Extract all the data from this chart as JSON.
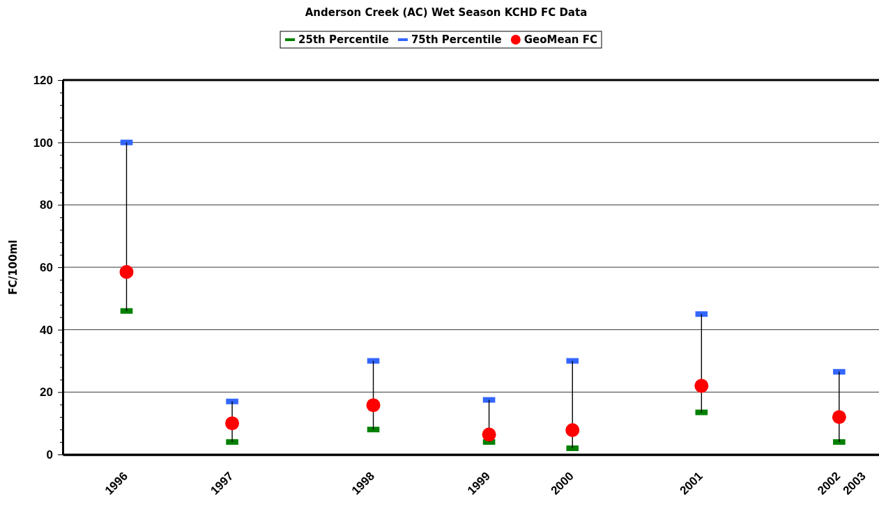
{
  "chart_data": {
    "type": "scatter",
    "title": "Anderson Creek (AC) Wet Season KCHD FC Data",
    "ylabel": "FC/100ml",
    "x": [
      "1996-01-01",
      "1997-01-01",
      "1998-05-05",
      "1999-06-10",
      "2000-03-25",
      "2001-06-15",
      "2002-10-05"
    ],
    "xlim": [
      "1995-05-25",
      "2003-02-20"
    ],
    "xticks": [
      {
        "value": "1996-01-01",
        "label": "1996"
      },
      {
        "value": "1997-01-01",
        "label": "1997"
      },
      {
        "value": "1998-05-05",
        "label": "1998"
      },
      {
        "value": "1999-06-10",
        "label": "1999"
      },
      {
        "value": "2000-03-25",
        "label": "2000"
      },
      {
        "value": "2001-06-15",
        "label": "2001"
      },
      {
        "value": "2002-10-05",
        "label": "2002"
      },
      {
        "value": "2003-01-01",
        "label": "2003"
      }
    ],
    "ylim": [
      0,
      120
    ],
    "yticks": [
      0,
      {
        "value": 4,
        "label": null
      },
      {
        "value": 8,
        "label": null
      },
      {
        "value": 12,
        "label": null
      },
      {
        "value": 16,
        "label": null
      },
      20,
      {
        "value": 24,
        "label": null
      },
      {
        "value": 28,
        "label": null
      },
      {
        "value": 32,
        "label": null
      },
      {
        "value": 36,
        "label": null
      },
      40,
      {
        "value": 44,
        "label": null
      },
      {
        "value": 48,
        "label": null
      },
      {
        "value": 52,
        "label": null
      },
      {
        "value": 56,
        "label": null
      },
      60,
      {
        "value": 64,
        "label": null
      },
      {
        "value": 68,
        "label": null
      },
      {
        "value": 72,
        "label": null
      },
      {
        "value": 76,
        "label": null
      },
      80,
      {
        "value": 84,
        "label": null
      },
      {
        "value": 88,
        "label": null
      },
      {
        "value": 92,
        "label": null
      },
      {
        "value": 96,
        "label": null
      },
      100,
      {
        "value": 104,
        "label": null
      },
      {
        "value": 108,
        "label": null
      },
      {
        "value": 112,
        "label": null
      },
      {
        "value": 116,
        "label": null
      },
      120
    ],
    "grid": "y",
    "legend": "top",
    "series": [
      {
        "name": "25th Percentile",
        "color": "#008000",
        "values": [
          46,
          4,
          8,
          4,
          2,
          13.5,
          4
        ]
      },
      {
        "name": "75th Percentile",
        "color": "#3366ff",
        "values": [
          100,
          17,
          30,
          17.5,
          30,
          45,
          26.5
        ]
      },
      {
        "name": "GeoMean FC",
        "color": "#ff0000",
        "marker": "circle",
        "values": [
          58.5,
          10,
          15.8,
          6.4,
          7.8,
          22,
          12
        ],
        "errors": [
          [
            46,
            100
          ],
          [
            4,
            17
          ],
          [
            8,
            30
          ],
          [
            4,
            17.5
          ],
          [
            2,
            30
          ],
          [
            13.5,
            45
          ],
          [
            4,
            26.5
          ]
        ]
      }
    ]
  }
}
